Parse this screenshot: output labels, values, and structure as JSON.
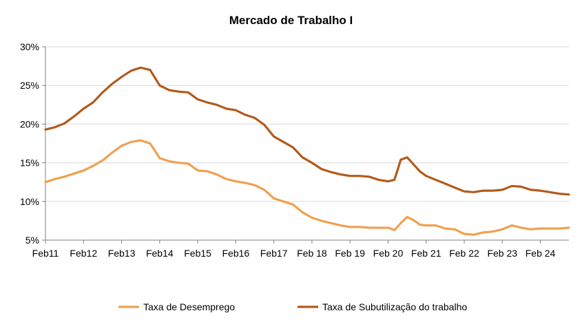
{
  "chart_data": {
    "type": "line",
    "title": "Mercado de Trabalho  I",
    "xlabel": "",
    "ylabel": "",
    "x_range": [
      "2011-02",
      "2024-11"
    ],
    "ylim": [
      5,
      30
    ],
    "y_ticks": [
      5,
      10,
      15,
      20,
      25,
      30
    ],
    "y_tick_labels": [
      "5%",
      "10%",
      "15%",
      "20%",
      "25%",
      "30%"
    ],
    "x_tick_labels": [
      "Feb11",
      "Feb12",
      "Feb13",
      "Feb14",
      "Feb15",
      "Feb16",
      "Feb17",
      "Feb 18",
      "Feb 19",
      "Feb 20",
      "Feb 21",
      "Feb 22",
      "Feb 23",
      "Feb 24"
    ],
    "x_tick_dates": [
      "2011-02",
      "2012-02",
      "2013-02",
      "2014-02",
      "2015-02",
      "2016-02",
      "2017-02",
      "2018-02",
      "2019-02",
      "2020-02",
      "2021-02",
      "2022-02",
      "2023-02",
      "2024-02"
    ],
    "grid": "horizontal",
    "legend_position": "bottom",
    "series": [
      {
        "name": "Taxa de Desemprego",
        "color": "#F0A050",
        "points": [
          [
            "2011-02",
            12.5
          ],
          [
            "2011-05",
            12.9
          ],
          [
            "2011-08",
            13.2
          ],
          [
            "2011-11",
            13.6
          ],
          [
            "2012-02",
            14.0
          ],
          [
            "2012-05",
            14.6
          ],
          [
            "2012-08",
            15.3
          ],
          [
            "2012-11",
            16.3
          ],
          [
            "2013-02",
            17.2
          ],
          [
            "2013-05",
            17.7
          ],
          [
            "2013-08",
            17.9
          ],
          [
            "2013-11",
            17.5
          ],
          [
            "2014-02",
            15.6
          ],
          [
            "2014-05",
            15.2
          ],
          [
            "2014-08",
            15.0
          ],
          [
            "2014-11",
            14.9
          ],
          [
            "2015-02",
            14.0
          ],
          [
            "2015-05",
            13.9
          ],
          [
            "2015-08",
            13.5
          ],
          [
            "2015-11",
            12.9
          ],
          [
            "2016-02",
            12.6
          ],
          [
            "2016-05",
            12.4
          ],
          [
            "2016-08",
            12.1
          ],
          [
            "2016-11",
            11.5
          ],
          [
            "2017-02",
            10.4
          ],
          [
            "2017-05",
            10.0
          ],
          [
            "2017-08",
            9.6
          ],
          [
            "2017-11",
            8.6
          ],
          [
            "2018-02",
            7.9
          ],
          [
            "2018-05",
            7.5
          ],
          [
            "2018-08",
            7.2
          ],
          [
            "2018-11",
            6.9
          ],
          [
            "2019-02",
            6.7
          ],
          [
            "2019-05",
            6.7
          ],
          [
            "2019-08",
            6.6
          ],
          [
            "2019-11",
            6.6
          ],
          [
            "2020-02",
            6.6
          ],
          [
            "2020-04",
            6.3
          ],
          [
            "2020-06",
            7.2
          ],
          [
            "2020-08",
            8.0
          ],
          [
            "2020-10",
            7.6
          ],
          [
            "2020-12",
            7.0
          ],
          [
            "2021-02",
            6.9
          ],
          [
            "2021-05",
            6.9
          ],
          [
            "2021-08",
            6.5
          ],
          [
            "2021-11",
            6.4
          ],
          [
            "2022-02",
            5.8
          ],
          [
            "2022-05",
            5.7
          ],
          [
            "2022-08",
            6.0
          ],
          [
            "2022-11",
            6.1
          ],
          [
            "2023-02",
            6.4
          ],
          [
            "2023-05",
            6.9
          ],
          [
            "2023-08",
            6.6
          ],
          [
            "2023-11",
            6.4
          ],
          [
            "2024-02",
            6.5
          ],
          [
            "2024-05",
            6.5
          ],
          [
            "2024-08",
            6.5
          ],
          [
            "2024-11",
            6.6
          ]
        ]
      },
      {
        "name": "Taxa de Subutilização do trabalho",
        "color": "#B35A1A",
        "points": [
          [
            "2011-02",
            19.3
          ],
          [
            "2011-05",
            19.6
          ],
          [
            "2011-08",
            20.1
          ],
          [
            "2011-11",
            21.0
          ],
          [
            "2012-02",
            22.0
          ],
          [
            "2012-05",
            22.8
          ],
          [
            "2012-08",
            24.1
          ],
          [
            "2012-11",
            25.2
          ],
          [
            "2013-02",
            26.1
          ],
          [
            "2013-05",
            26.9
          ],
          [
            "2013-08",
            27.3
          ],
          [
            "2013-11",
            27.0
          ],
          [
            "2014-02",
            25.0
          ],
          [
            "2014-05",
            24.4
          ],
          [
            "2014-08",
            24.2
          ],
          [
            "2014-11",
            24.1
          ],
          [
            "2015-02",
            23.2
          ],
          [
            "2015-05",
            22.8
          ],
          [
            "2015-08",
            22.5
          ],
          [
            "2015-11",
            22.0
          ],
          [
            "2016-02",
            21.8
          ],
          [
            "2016-05",
            21.2
          ],
          [
            "2016-08",
            20.8
          ],
          [
            "2016-11",
            19.9
          ],
          [
            "2017-02",
            18.4
          ],
          [
            "2017-05",
            17.7
          ],
          [
            "2017-08",
            17.0
          ],
          [
            "2017-11",
            15.7
          ],
          [
            "2018-02",
            15.0
          ],
          [
            "2018-05",
            14.2
          ],
          [
            "2018-08",
            13.8
          ],
          [
            "2018-11",
            13.5
          ],
          [
            "2019-02",
            13.3
          ],
          [
            "2019-05",
            13.3
          ],
          [
            "2019-08",
            13.2
          ],
          [
            "2019-11",
            12.8
          ],
          [
            "2020-02",
            12.6
          ],
          [
            "2020-04",
            12.8
          ],
          [
            "2020-06",
            15.4
          ],
          [
            "2020-08",
            15.7
          ],
          [
            "2020-10",
            14.8
          ],
          [
            "2020-12",
            13.9
          ],
          [
            "2021-02",
            13.3
          ],
          [
            "2021-05",
            12.8
          ],
          [
            "2021-08",
            12.3
          ],
          [
            "2021-11",
            11.8
          ],
          [
            "2022-02",
            11.3
          ],
          [
            "2022-05",
            11.2
          ],
          [
            "2022-08",
            11.4
          ],
          [
            "2022-11",
            11.4
          ],
          [
            "2023-02",
            11.5
          ],
          [
            "2023-05",
            12.0
          ],
          [
            "2023-08",
            11.9
          ],
          [
            "2023-11",
            11.5
          ],
          [
            "2024-02",
            11.4
          ],
          [
            "2024-05",
            11.2
          ],
          [
            "2024-08",
            11.0
          ],
          [
            "2024-11",
            10.9
          ]
        ]
      }
    ]
  }
}
